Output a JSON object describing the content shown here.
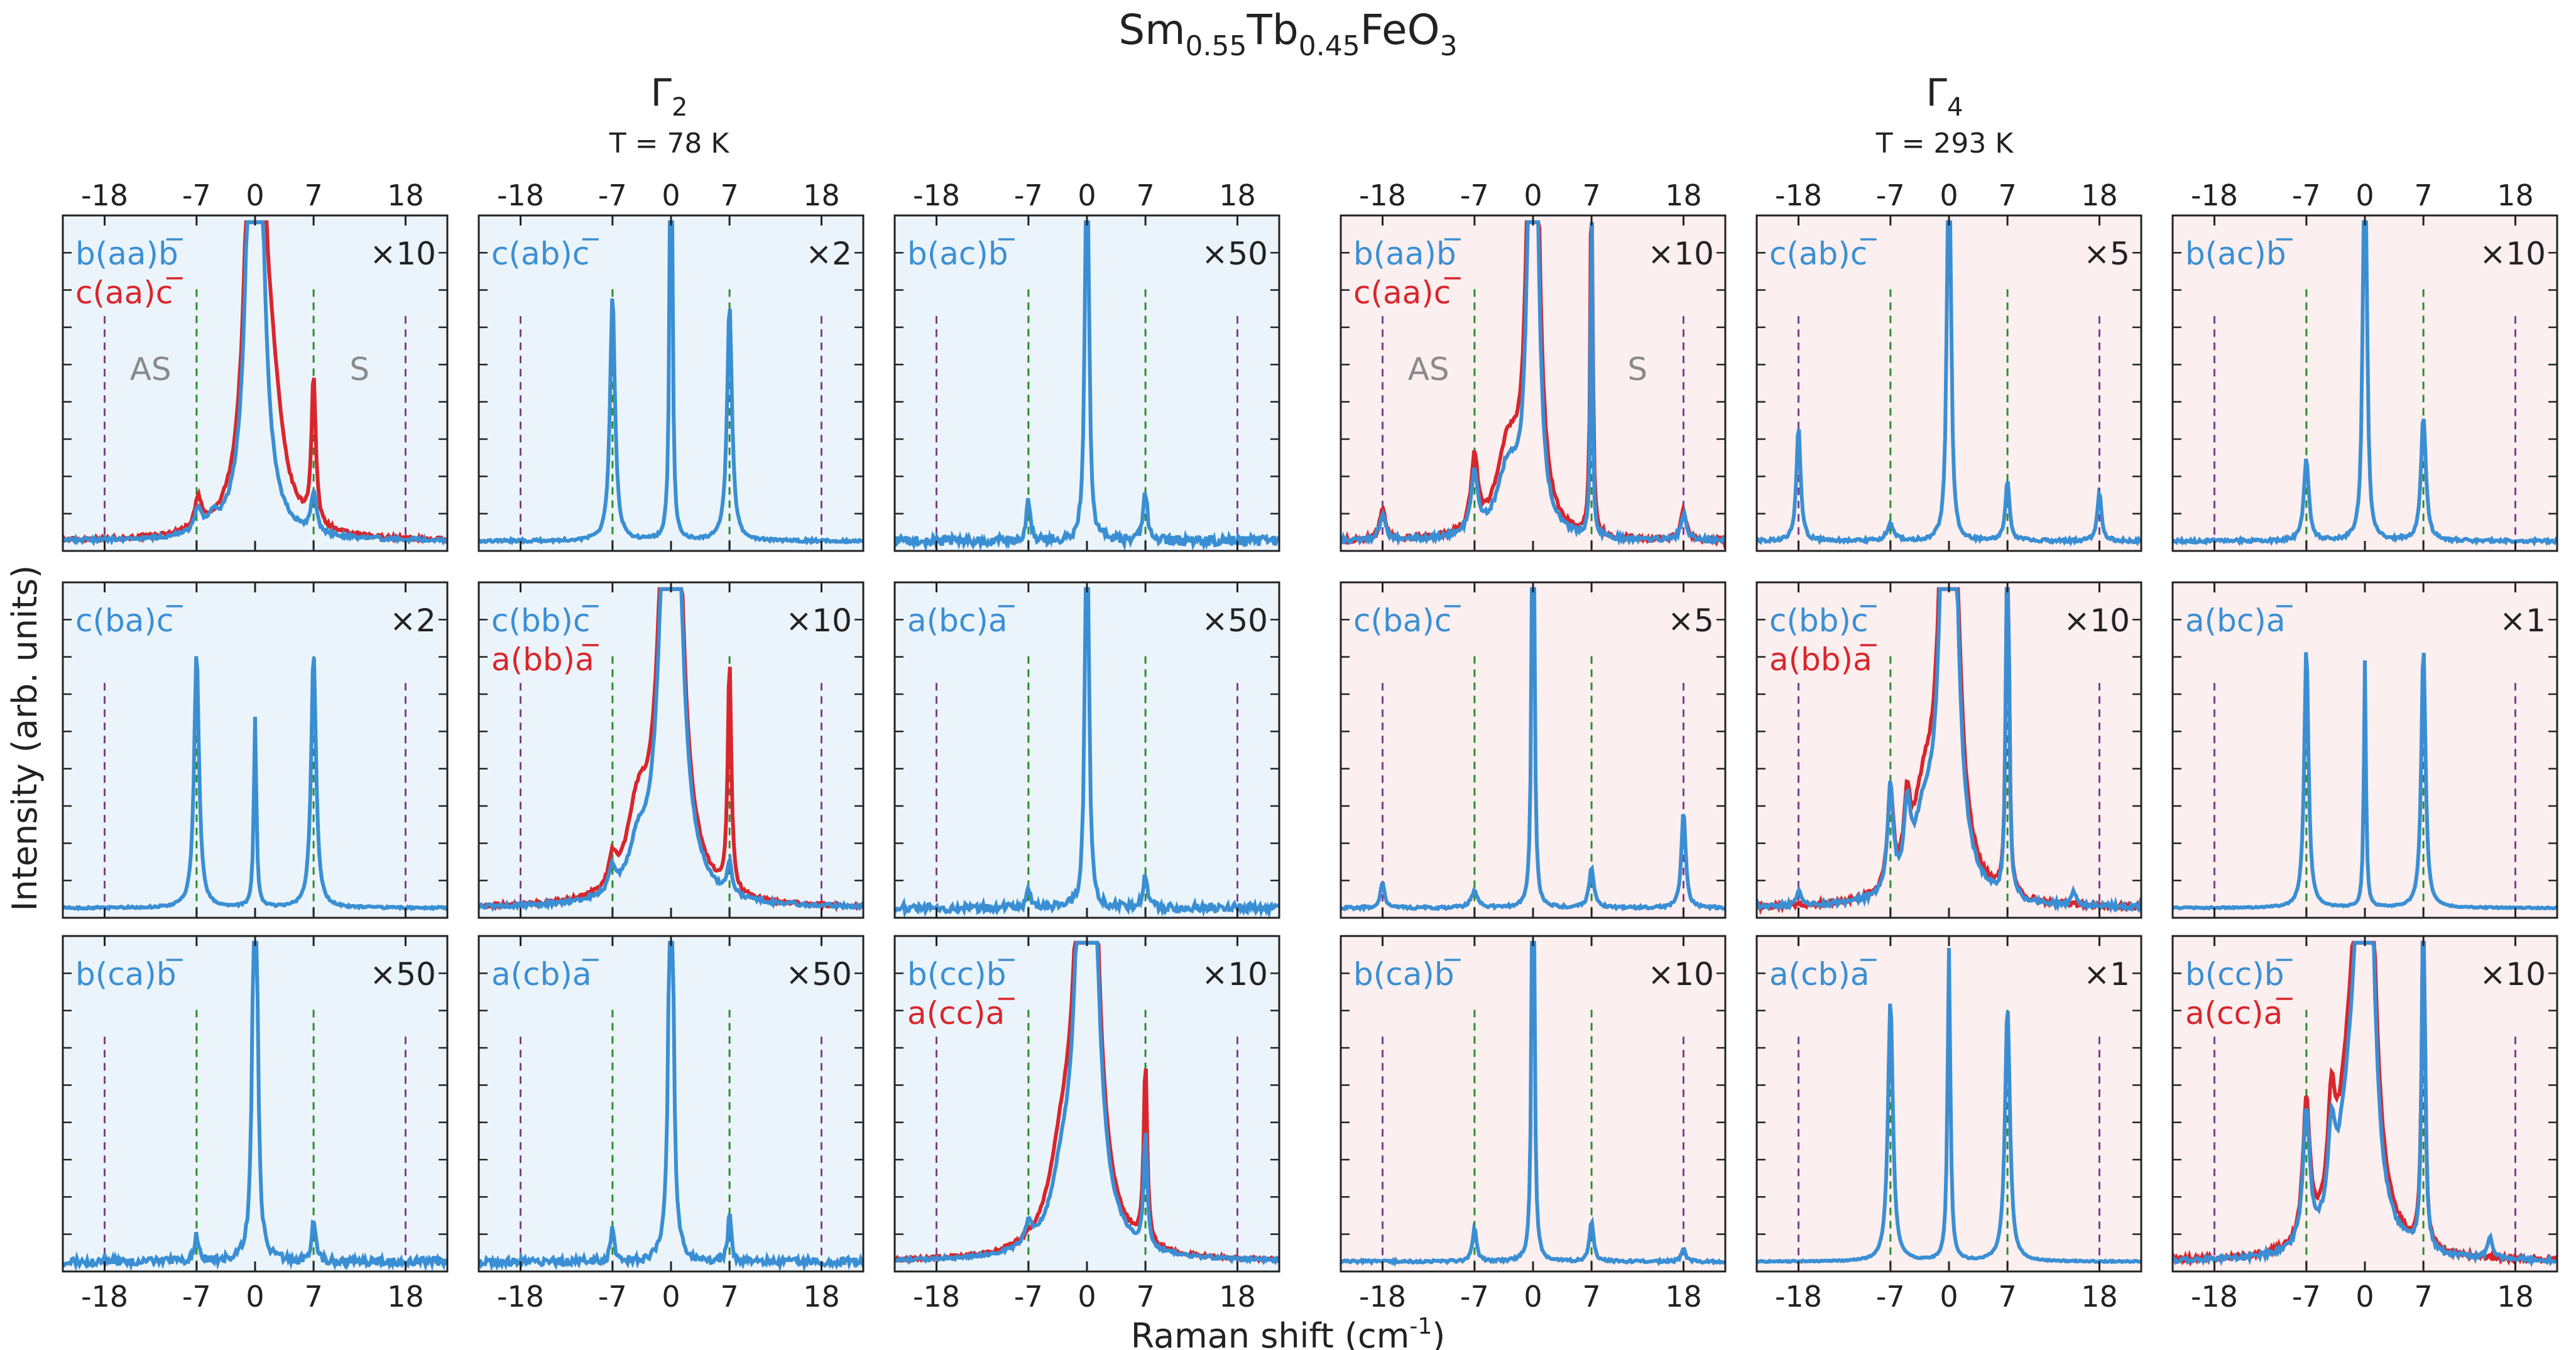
{
  "figure": {
    "title": {
      "base1": "Sm",
      "sub1": "0.55",
      "base2": "Tb",
      "sub2": "0.45",
      "base3": "FeO",
      "sub3": "3"
    },
    "xlabel": {
      "text": "Raman shift (cm",
      "sup": "-1",
      "close": ")"
    },
    "ylabel": "Intensity (arb. units)",
    "phases": [
      {
        "symbol": "Γ",
        "sub": "2",
        "temp": "T = 78 K"
      },
      {
        "symbol": "Γ",
        "sub": "4",
        "temp": "T = 293 K"
      }
    ],
    "region_labels": {
      "anti_stokes": "AS",
      "stokes": "S"
    }
  },
  "colors": {
    "blue": "#3a8fd4",
    "red": "#d9262c",
    "bg_gamma2": "#ecf4fb",
    "bg_gamma4": "#fcefef",
    "green_dash": "#2e8b2e",
    "purple_dash": "#7b3f8c",
    "region_label": "#8a8a8a"
  },
  "chart_data": {
    "type": "line",
    "x_range": [
      -23,
      23
    ],
    "x_ticks": [
      -18,
      -7,
      0,
      7,
      18
    ],
    "dashed_lines_green": [
      -7,
      7
    ],
    "dashed_lines_purple": [
      -18,
      18
    ],
    "panels": [
      {
        "phase": "Γ2",
        "row": 0,
        "col": 0,
        "labels": [
          {
            "text": "b(aa)b",
            "bar": "b",
            "color": "blue"
          },
          {
            "text": "c(aa)c",
            "bar": "c",
            "color": "red"
          }
        ],
        "mult": "×10",
        "regions": true,
        "blue_peaks": [
          [
            0,
            2.5,
            0.8
          ],
          [
            -6.8,
            0.07,
            0.5
          ],
          [
            7,
            0.12,
            0.4
          ],
          [
            -5,
            0.04,
            0.5
          ]
        ],
        "red_peaks": [
          [
            0,
            2.4,
            0.9
          ],
          [
            7,
            0.45,
            0.3
          ],
          [
            -6.8,
            0.09,
            0.5
          ],
          [
            2,
            0.3,
            1.5
          ]
        ],
        "noise": 0.006
      },
      {
        "phase": "Γ2",
        "row": 0,
        "col": 1,
        "labels": [
          {
            "text": "c(ab)c",
            "bar": "c",
            "color": "blue"
          }
        ],
        "mult": "×2",
        "blue_peaks": [
          [
            0,
            2.0,
            0.15
          ],
          [
            -7,
            0.75,
            0.35
          ],
          [
            7,
            0.72,
            0.35
          ]
        ],
        "noise": 0.004
      },
      {
        "phase": "Γ2",
        "row": 0,
        "col": 2,
        "labels": [
          {
            "text": "b(ac)b",
            "bar": "b",
            "color": "blue"
          }
        ],
        "mult": "×50",
        "blue_peaks": [
          [
            0,
            2.0,
            0.2
          ],
          [
            -7,
            0.12,
            0.3
          ],
          [
            7,
            0.15,
            0.3
          ]
        ],
        "noise": 0.015
      },
      {
        "phase": "Γ2",
        "row": 1,
        "col": 0,
        "labels": [
          {
            "text": "c(ba)c",
            "bar": "c",
            "color": "blue"
          }
        ],
        "mult": "×2",
        "blue_peaks": [
          [
            -7,
            0.78,
            0.35
          ],
          [
            0,
            0.58,
            0.18
          ],
          [
            7,
            0.78,
            0.35
          ]
        ],
        "noise": 0.003
      },
      {
        "phase": "Γ2",
        "row": 1,
        "col": 1,
        "labels": [
          {
            "text": "c(bb)c",
            "bar": "c",
            "color": "blue"
          },
          {
            "text": "a(bb)a",
            "bar": "a",
            "color": "red"
          }
        ],
        "mult": "×10",
        "blue_peaks": [
          [
            0,
            2.5,
            1.0
          ],
          [
            -7,
            0.07,
            0.5
          ],
          [
            7,
            0.1,
            0.3
          ],
          [
            -4,
            0.12,
            1.2
          ]
        ],
        "red_peaks": [
          [
            0,
            2.4,
            1.1
          ],
          [
            7,
            0.7,
            0.25
          ],
          [
            -4,
            0.22,
            1.5
          ],
          [
            -7,
            0.08,
            0.5
          ]
        ],
        "noise": 0.006
      },
      {
        "phase": "Γ2",
        "row": 1,
        "col": 2,
        "labels": [
          {
            "text": "a(bc)a",
            "bar": "a",
            "color": "blue"
          }
        ],
        "mult": "×50",
        "blue_peaks": [
          [
            0,
            2.0,
            0.2
          ],
          [
            -7,
            0.05,
            0.3
          ],
          [
            7,
            0.1,
            0.3
          ]
        ],
        "noise": 0.013
      },
      {
        "phase": "Γ2",
        "row": 2,
        "col": 0,
        "labels": [
          {
            "text": "b(ca)b",
            "bar": "b",
            "color": "blue"
          }
        ],
        "mult": "×50",
        "blue_peaks": [
          [
            0,
            2.0,
            0.25
          ],
          [
            -7,
            0.08,
            0.3
          ],
          [
            7,
            0.12,
            0.3
          ]
        ],
        "noise": 0.012
      },
      {
        "phase": "Γ2",
        "row": 2,
        "col": 1,
        "labels": [
          {
            "text": "a(cb)a",
            "bar": "a",
            "color": "blue"
          }
        ],
        "mult": "×50",
        "blue_peaks": [
          [
            0,
            2.0,
            0.25
          ],
          [
            -7,
            0.1,
            0.25
          ],
          [
            7,
            0.14,
            0.25
          ]
        ],
        "noise": 0.012
      },
      {
        "phase": "Γ2",
        "row": 2,
        "col": 2,
        "labels": [
          {
            "text": "b(cc)b",
            "bar": "b",
            "color": "blue"
          },
          {
            "text": "a(cc)a",
            "bar": "a",
            "color": "red"
          }
        ],
        "mult": "×10",
        "blue_peaks": [
          [
            0,
            2.5,
            1.0
          ],
          [
            -7,
            0.06,
            0.5
          ],
          [
            7,
            0.35,
            0.25
          ],
          [
            -3,
            0.15,
            1.5
          ]
        ],
        "red_peaks": [
          [
            0,
            2.4,
            1.1
          ],
          [
            7,
            0.55,
            0.25
          ],
          [
            -3,
            0.22,
            1.8
          ]
        ],
        "noise": 0.005
      },
      {
        "phase": "Γ4",
        "row": 0,
        "col": 0,
        "labels": [
          {
            "text": "b(aa)b",
            "bar": "b",
            "color": "blue"
          },
          {
            "text": "c(aa)c",
            "bar": "c",
            "color": "red"
          }
        ],
        "mult": "×10",
        "regions": true,
        "blue_peaks": [
          [
            0,
            2.5,
            0.5
          ],
          [
            -18,
            0.08,
            0.4
          ],
          [
            -7,
            0.18,
            0.5
          ],
          [
            7,
            1.2,
            0.12
          ],
          [
            18,
            0.08,
            0.4
          ],
          [
            -3,
            0.2,
            1.5
          ]
        ],
        "red_peaks": [
          [
            0,
            2.4,
            0.6
          ],
          [
            -18,
            0.1,
            0.4
          ],
          [
            -7,
            0.22,
            0.5
          ],
          [
            7,
            1.3,
            0.15
          ],
          [
            18,
            0.09,
            0.4
          ],
          [
            -3,
            0.25,
            1.6
          ]
        ],
        "noise": 0.008
      },
      {
        "phase": "Γ4",
        "row": 0,
        "col": 1,
        "labels": [
          {
            "text": "c(ab)c",
            "bar": "c",
            "color": "blue"
          }
        ],
        "mult": "×5",
        "blue_peaks": [
          [
            0,
            2.0,
            0.2
          ],
          [
            -18,
            0.35,
            0.3
          ],
          [
            -7,
            0.05,
            0.5
          ],
          [
            7,
            0.18,
            0.3
          ],
          [
            18,
            0.15,
            0.3
          ]
        ],
        "noise": 0.005
      },
      {
        "phase": "Γ4",
        "row": 0,
        "col": 2,
        "labels": [
          {
            "text": "b(ac)b",
            "bar": "b",
            "color": "blue"
          }
        ],
        "mult": "×10",
        "blue_peaks": [
          [
            0,
            2.0,
            0.2
          ],
          [
            -7,
            0.25,
            0.35
          ],
          [
            7,
            0.38,
            0.35
          ]
        ],
        "noise": 0.005
      },
      {
        "phase": "Γ4",
        "row": 1,
        "col": 0,
        "labels": [
          {
            "text": "c(ba)c",
            "bar": "c",
            "color": "blue"
          }
        ],
        "mult": "×5",
        "blue_peaks": [
          [
            0,
            2.0,
            0.15
          ],
          [
            -18,
            0.08,
            0.3
          ],
          [
            -7,
            0.05,
            0.5
          ],
          [
            7,
            0.12,
            0.35
          ],
          [
            18,
            0.3,
            0.3
          ]
        ],
        "noise": 0.004
      },
      {
        "phase": "Γ4",
        "row": 1,
        "col": 1,
        "labels": [
          {
            "text": "c(bb)c",
            "bar": "c",
            "color": "blue"
          },
          {
            "text": "a(bb)a",
            "bar": "a",
            "color": "red"
          }
        ],
        "mult": "×10",
        "blue_peaks": [
          [
            0,
            2.5,
            0.8
          ],
          [
            -7,
            0.32,
            0.4
          ],
          [
            -5,
            0.22,
            0.4
          ],
          [
            7,
            2.0,
            0.15
          ],
          [
            -18,
            0.04,
            0.4
          ],
          [
            15,
            0.04,
            0.4
          ],
          [
            -3,
            0.2,
            1.5
          ]
        ],
        "red_peaks": [
          [
            0,
            2.4,
            0.9
          ],
          [
            -7,
            0.3,
            0.4
          ],
          [
            -5,
            0.2,
            0.4
          ],
          [
            7,
            2.0,
            0.15
          ],
          [
            -3,
            0.25,
            1.7
          ]
        ],
        "noise": 0.008
      },
      {
        "phase": "Γ4",
        "row": 1,
        "col": 2,
        "labels": [
          {
            "text": "a(bc)a",
            "bar": "a",
            "color": "blue"
          }
        ],
        "mult": "×1",
        "blue_peaks": [
          [
            -7,
            0.8,
            0.3
          ],
          [
            0,
            0.75,
            0.15
          ],
          [
            7,
            0.8,
            0.3
          ]
        ],
        "noise": 0.002
      },
      {
        "phase": "Γ4",
        "row": 2,
        "col": 0,
        "labels": [
          {
            "text": "b(ca)b",
            "bar": "b",
            "color": "blue"
          }
        ],
        "mult": "×10",
        "blue_peaks": [
          [
            0,
            2.0,
            0.15
          ],
          [
            -7,
            0.1,
            0.3
          ],
          [
            7,
            0.12,
            0.3
          ],
          [
            18,
            0.04,
            0.3
          ]
        ],
        "noise": 0.004
      },
      {
        "phase": "Γ4",
        "row": 2,
        "col": 1,
        "labels": [
          {
            "text": "a(cb)a",
            "bar": "a",
            "color": "blue"
          }
        ],
        "mult": "×1",
        "blue_peaks": [
          [
            -7,
            0.8,
            0.35
          ],
          [
            0,
            0.95,
            0.2
          ],
          [
            7,
            0.78,
            0.35
          ]
        ],
        "noise": 0.002
      },
      {
        "phase": "Γ4",
        "row": 2,
        "col": 2,
        "labels": [
          {
            "text": "b(cc)b",
            "bar": "b",
            "color": "blue"
          },
          {
            "text": "a(cc)a",
            "bar": "a",
            "color": "red"
          }
        ],
        "mult": "×10",
        "blue_peaks": [
          [
            0,
            2.5,
            0.8
          ],
          [
            -7,
            0.4,
            0.5
          ],
          [
            -4,
            0.25,
            0.5
          ],
          [
            7,
            1.3,
            0.2
          ],
          [
            15,
            0.06,
            0.4
          ],
          [
            -2,
            0.3,
            1.5
          ]
        ],
        "red_peaks": [
          [
            0,
            2.4,
            0.9
          ],
          [
            -7,
            0.42,
            0.5
          ],
          [
            -4,
            0.3,
            0.5
          ],
          [
            7,
            1.3,
            0.2
          ],
          [
            -2,
            0.35,
            1.7
          ]
        ],
        "noise": 0.008
      }
    ]
  }
}
